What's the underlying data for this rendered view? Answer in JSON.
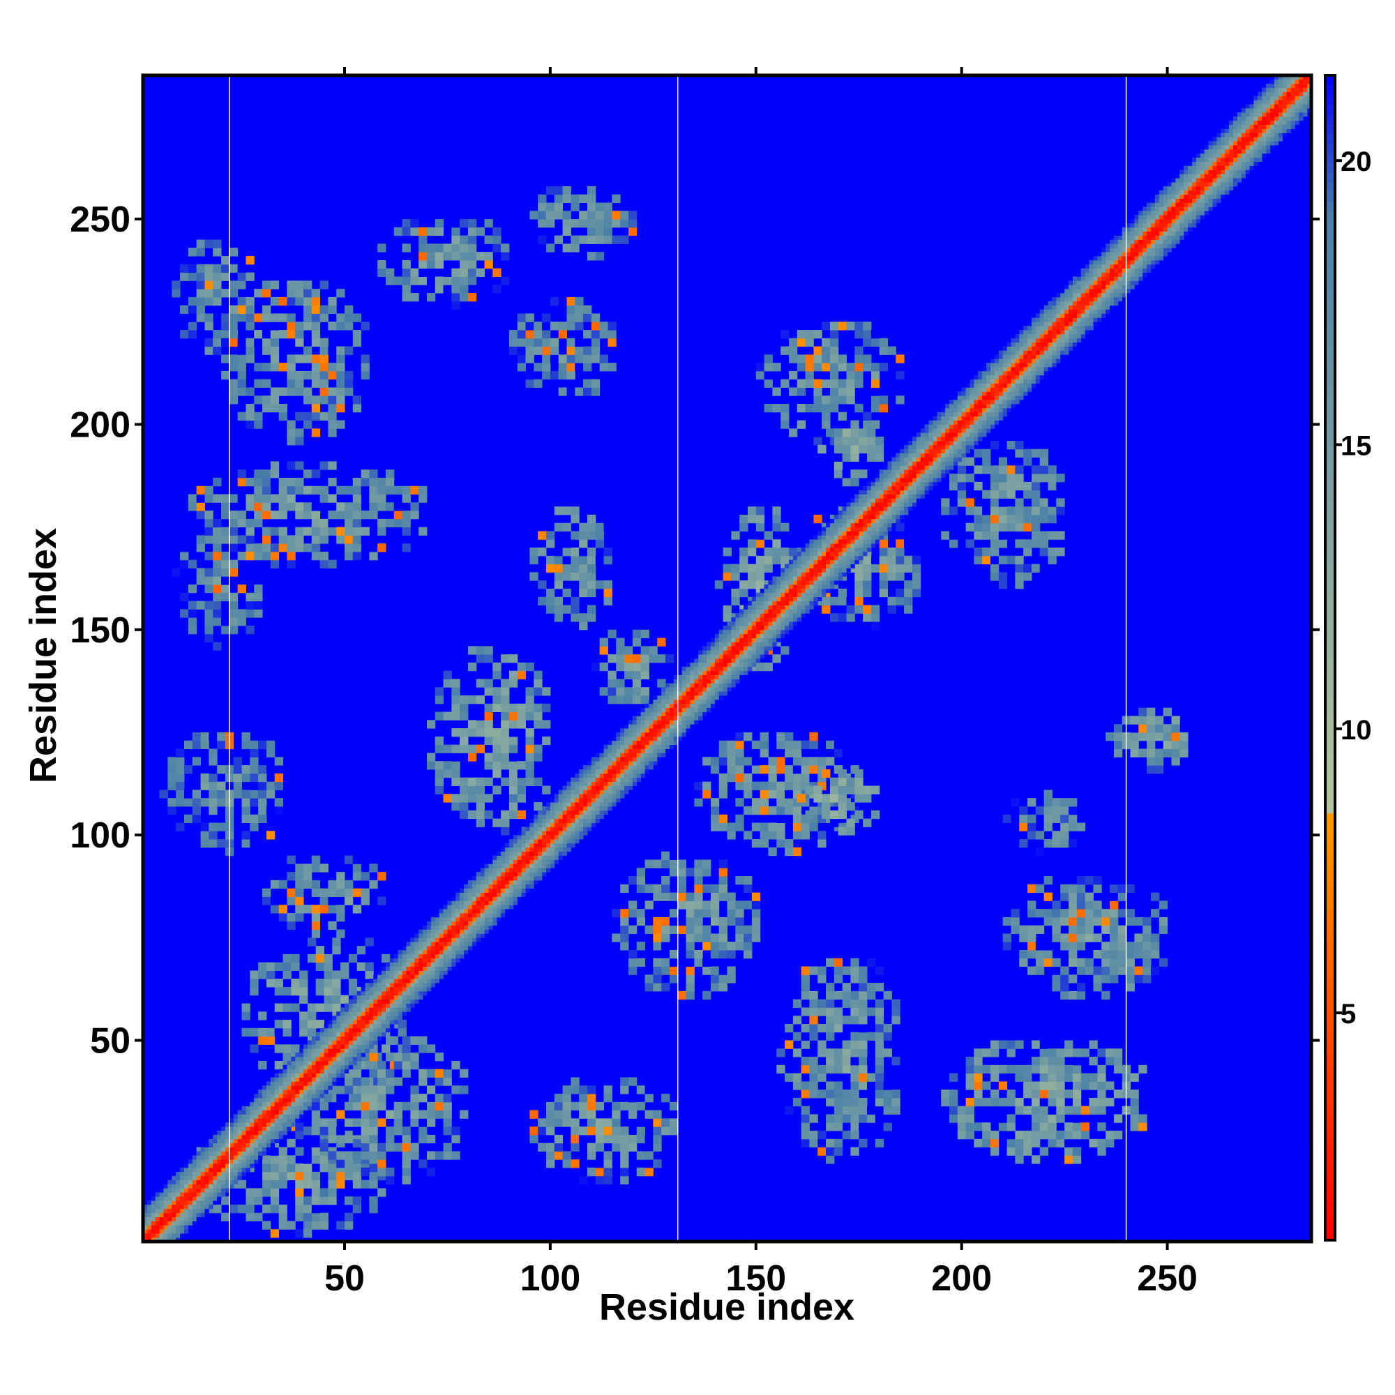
{
  "chart_data": {
    "type": "heatmap",
    "title": "",
    "xlabel": "Residue index",
    "ylabel": "Residue index",
    "xlim": [
      1,
      285
    ],
    "ylim": [
      1,
      285
    ],
    "x_ticks": [
      50,
      100,
      150,
      200,
      250
    ],
    "y_ticks": [
      50,
      100,
      150,
      200,
      250
    ],
    "top_ticks": [
      50,
      100,
      150,
      200,
      250
    ],
    "right_ticks": [
      50,
      100,
      150,
      200,
      250
    ],
    "domain_boundaries_x": [
      22,
      131,
      240
    ],
    "colorbar": {
      "min": 1,
      "max": 21.5,
      "ticks": [
        5,
        10,
        15,
        20
      ],
      "colors": [
        {
          "value": 1,
          "color": "#ff0000"
        },
        {
          "value": 8.5,
          "color": "#ff9900"
        },
        {
          "value": 8.6,
          "color": "#b4c69a"
        },
        {
          "value": 19,
          "color": "#4a80a8"
        },
        {
          "value": 21.5,
          "color": "#0000ff"
        }
      ],
      "background_color": "#0000ff"
    },
    "background_value": 21.5,
    "diagonal": {
      "from": 1,
      "to": 285,
      "core_value": 3,
      "band_width": 8
    },
    "contact_regions": [
      {
        "x": [
          5,
          35
        ],
        "y": [
          95,
          125
        ],
        "value": 15
      },
      {
        "x": [
          8,
          30
        ],
        "y": [
          145,
          175
        ],
        "value": 15
      },
      {
        "x": [
          8,
          28
        ],
        "y": [
          215,
          245
        ],
        "value": 15
      },
      {
        "x": [
          12,
          60
        ],
        "y": [
          2,
          30
        ],
        "value": 14
      },
      {
        "x": [
          25,
          65
        ],
        "y": [
          35,
          75
        ],
        "value": 13
      },
      {
        "x": [
          40,
          80
        ],
        "y": [
          15,
          50
        ],
        "value": 14
      },
      {
        "x": [
          30,
          60
        ],
        "y": [
          75,
          95
        ],
        "value": 14
      },
      {
        "x": [
          12,
          70
        ],
        "y": [
          165,
          190
        ],
        "value": 14
      },
      {
        "x": [
          20,
          55
        ],
        "y": [
          195,
          235
        ],
        "value": 14
      },
      {
        "x": [
          58,
          90
        ],
        "y": [
          228,
          250
        ],
        "value": 14
      },
      {
        "x": [
          95,
          120
        ],
        "y": [
          240,
          258
        ],
        "value": 14
      },
      {
        "x": [
          90,
          115
        ],
        "y": [
          205,
          230
        ],
        "value": 15
      },
      {
        "x": [
          95,
          115
        ],
        "y": [
          150,
          180
        ],
        "value": 14
      },
      {
        "x": [
          70,
          100
        ],
        "y": [
          100,
          145
        ],
        "value": 13
      },
      {
        "x": [
          110,
          130
        ],
        "y": [
          130,
          150
        ],
        "value": 14
      },
      {
        "x": [
          95,
          130
        ],
        "y": [
          15,
          40
        ],
        "value": 14
      },
      {
        "x": [
          115,
          150
        ],
        "y": [
          60,
          95
        ],
        "value": 14
      },
      {
        "x": [
          135,
          175
        ],
        "y": [
          95,
          125
        ],
        "value": 14
      },
      {
        "x": [
          160,
          180
        ],
        "y": [
          100,
          115
        ],
        "value": 12
      },
      {
        "x": [
          155,
          185
        ],
        "y": [
          20,
          70
        ],
        "value": 14
      },
      {
        "x": [
          140,
          160
        ],
        "y": [
          140,
          180
        ],
        "value": 13
      },
      {
        "x": [
          160,
          190
        ],
        "y": [
          150,
          180
        ],
        "value": 14
      },
      {
        "x": [
          150,
          185
        ],
        "y": [
          195,
          225
        ],
        "value": 14
      },
      {
        "x": [
          195,
          225
        ],
        "y": [
          160,
          195
        ],
        "value": 14
      },
      {
        "x": [
          195,
          245
        ],
        "y": [
          20,
          50
        ],
        "value": 13
      },
      {
        "x": [
          210,
          250
        ],
        "y": [
          60,
          90
        ],
        "value": 14
      },
      {
        "x": [
          235,
          255
        ],
        "y": [
          115,
          130
        ],
        "value": 13
      },
      {
        "x": [
          210,
          230
        ],
        "y": [
          95,
          110
        ],
        "value": 15
      },
      {
        "x": [
          165,
          180
        ],
        "y": [
          185,
          200
        ],
        "value": 12
      }
    ]
  }
}
